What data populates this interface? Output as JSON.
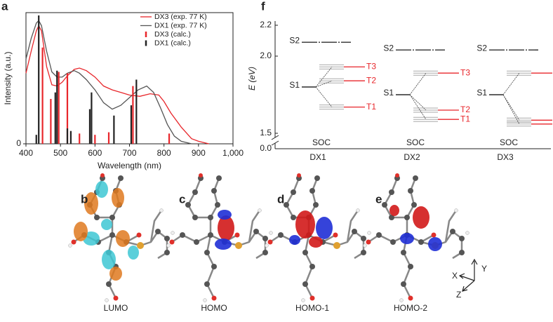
{
  "chart_data": [
    {
      "type": "spectrum",
      "panel": "a",
      "xlabel": "Wavelength (nm)",
      "ylabel": "Intensity (a.u.)",
      "xlim": [
        400,
        1000
      ],
      "xticks": [
        400,
        500,
        600,
        700,
        800,
        900,
        {
          "value": 1000,
          "label": "1,000"
        }
      ],
      "ylim": [
        0,
        1
      ],
      "yticks": [
        0
      ],
      "legend": "upper right",
      "series": [
        {
          "name": "DX3 (exp. 77 K)",
          "color": "#e8262b",
          "style": "line",
          "x": [
            400,
            415,
            430,
            437,
            445,
            460,
            475,
            490,
            505,
            520,
            540,
            555,
            575,
            600,
            625,
            650,
            675,
            700,
            730,
            760,
            785,
            800,
            820,
            850,
            880,
            900,
            930
          ],
          "values": [
            0.55,
            0.72,
            0.88,
            0.92,
            0.88,
            0.6,
            0.46,
            0.45,
            0.48,
            0.53,
            0.58,
            0.59,
            0.57,
            0.52,
            0.45,
            0.42,
            0.4,
            0.38,
            0.37,
            0.39,
            0.38,
            0.33,
            0.24,
            0.13,
            0.04,
            0.02,
            0
          ]
        },
        {
          "name": "DX1 (exp. 77 K)",
          "color": "#555555",
          "style": "line",
          "x": [
            400,
            415,
            430,
            437,
            445,
            460,
            475,
            490,
            505,
            520,
            540,
            555,
            575,
            600,
            625,
            650,
            675,
            700,
            725,
            750,
            770,
            790,
            810,
            830,
            850,
            880
          ],
          "values": [
            0.66,
            0.82,
            0.94,
            0.96,
            0.92,
            0.72,
            0.56,
            0.52,
            0.52,
            0.55,
            0.57,
            0.55,
            0.5,
            0.42,
            0.32,
            0.27,
            0.3,
            0.36,
            0.42,
            0.45,
            0.4,
            0.28,
            0.15,
            0.06,
            0.02,
            0
          ]
        },
        {
          "name": "DX3 (calc.)",
          "color": "#e8262b",
          "style": "stick",
          "x": [
            448,
            472,
            495,
            520,
            555,
            600,
            640,
            710,
            815
          ],
          "values": [
            0.75,
            0.35,
            0.56,
            0.55,
            0.08,
            0.07,
            0.09,
            0.45,
            0.08
          ]
        },
        {
          "name": "DX1 (calc.)",
          "color": "#222222",
          "style": "stick",
          "x": [
            430,
            437,
            485,
            490,
            520,
            530,
            585,
            590,
            655,
            705,
            720
          ],
          "values": [
            0.07,
            1.0,
            0.4,
            0.57,
            0.12,
            0.1,
            0.27,
            0.4,
            0.22,
            0.3,
            0.5
          ]
        }
      ]
    },
    {
      "type": "energy-levels",
      "panel": "f",
      "ylabel": "E (eV)",
      "ylim": [
        1.5,
        2.2
      ],
      "yticks": [
        {
          "value": 0,
          "label": "0.0"
        },
        {
          "value": 1.5,
          "label": "1.5"
        },
        {
          "value": 2,
          "label": "2.0"
        },
        2.2
      ],
      "axis_break": [
        0,
        1.5
      ],
      "soc_label": "SOC",
      "categories": [
        "DX1",
        "DX2",
        "DX3"
      ],
      "series": [
        {
          "name": "S2",
          "color": "#000000",
          "values": [
            2.09,
            2.04,
            2.04
          ]
        },
        {
          "name": "S1",
          "color": "#000000",
          "values": [
            1.8,
            1.75,
            1.75
          ]
        },
        {
          "name": "T3",
          "color": "#e8262b",
          "values": [
            1.93,
            1.89,
            1.89
          ]
        },
        {
          "name": "T2",
          "color": "#e8262b",
          "values": [
            1.84,
            1.65,
            1.585
          ]
        },
        {
          "name": "T1",
          "color": "#e8262b",
          "values": [
            1.67,
            1.59,
            1.56
          ]
        }
      ]
    }
  ],
  "orbitals": [
    {
      "panel": "b",
      "label": "LUMO"
    },
    {
      "panel": "c",
      "label": "HOMO"
    },
    {
      "panel": "d",
      "label": "HOMO-1"
    },
    {
      "panel": "e",
      "label": "HOMO-2"
    }
  ],
  "axes_indicator": {
    "x": "X",
    "y": "Y",
    "z": "Z"
  }
}
